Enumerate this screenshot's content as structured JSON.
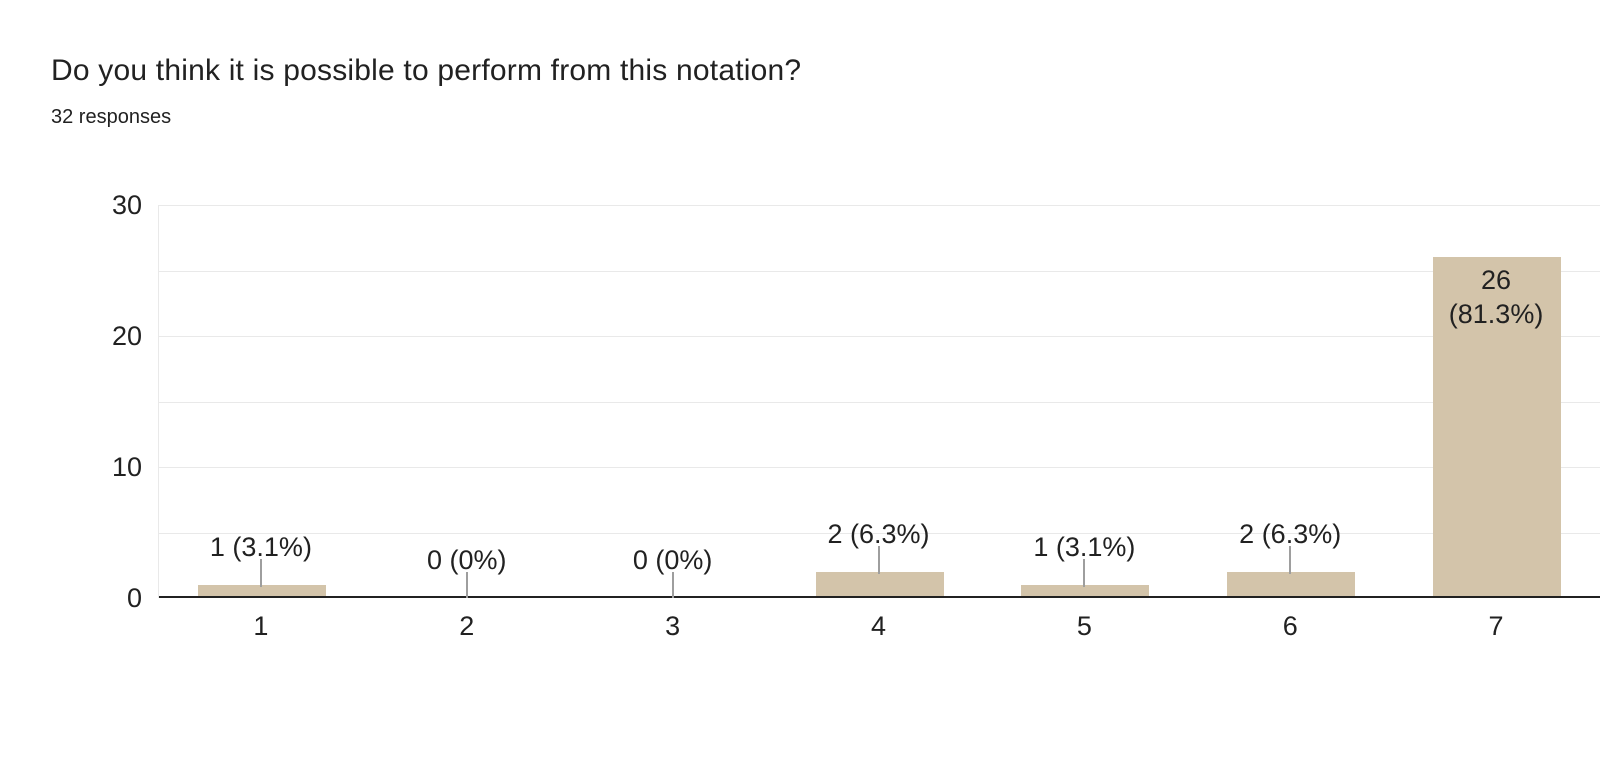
{
  "chart_data": {
    "type": "bar",
    "title": "Do you think it is possible to perform from this notation?",
    "subtitle": "32 responses",
    "response_count": 32,
    "categories": [
      "1",
      "2",
      "3",
      "4",
      "5",
      "6",
      "7"
    ],
    "values": [
      1,
      0,
      0,
      2,
      1,
      2,
      26
    ],
    "labels": [
      {
        "text": "1 (3.1%)",
        "placement": "above"
      },
      {
        "text": "0 (0%)",
        "placement": "above"
      },
      {
        "text": "0 (0%)",
        "placement": "above"
      },
      {
        "text": "2 (6.3%)",
        "placement": "above"
      },
      {
        "text": "1 (3.1%)",
        "placement": "above"
      },
      {
        "text": "2 (6.3%)",
        "placement": "above"
      },
      {
        "text": "26",
        "text_line2": "(81.3%)",
        "placement": "inside"
      }
    ],
    "xlabel": "",
    "ylabel": "",
    "ylim": [
      0,
      30
    ],
    "yticks": [
      0,
      10,
      20,
      30
    ],
    "grid_step": 5,
    "grid": "on",
    "legend_position": "none",
    "colors": {
      "bar": "#d3c4aa",
      "axis": "#212121",
      "grid": "#e9e9e9",
      "leader": "#9e9e9e",
      "text": "#212121"
    }
  }
}
